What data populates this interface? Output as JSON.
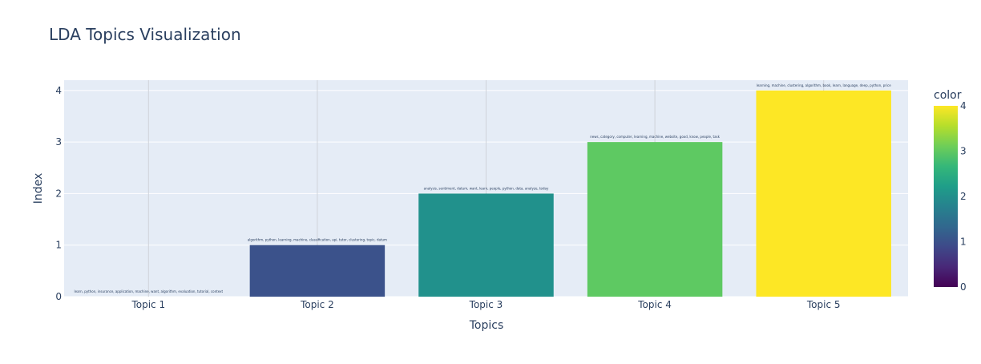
{
  "chart_data": {
    "type": "bar",
    "title": "LDA Topics Visualization",
    "xlabel": "Topics",
    "ylabel": "Index",
    "categories": [
      "Topic 1",
      "Topic 2",
      "Topic 3",
      "Topic 4",
      "Topic 5"
    ],
    "values": [
      0,
      1,
      2,
      3,
      4
    ],
    "bar_labels": [
      "learn, python, insurance, application, machine, want, algorithm, evaluation, tutorial, context",
      "algorithm, python, learning, machine, classification, api, tutor, clustering, topic, datum",
      "analysis, sentiment, datum, want, learn, people, python, data, analyze, today",
      "news, category, computer, learning, machine, website, good, know, people, task",
      "learning, machine, clustering, algorithm, book, learn, language, deep, python, price"
    ],
    "ylim": [
      0,
      4.2
    ],
    "yticks": [
      0,
      1,
      2,
      3,
      4
    ],
    "colorscale": "viridis",
    "colorbar": {
      "title": "color",
      "range": [
        0,
        4
      ],
      "ticks": [
        0,
        1,
        2,
        3,
        4
      ]
    },
    "bar_colors": [
      "#440154",
      "#3b528b",
      "#21918c",
      "#5ec962",
      "#fde725"
    ],
    "colorscale_stops": [
      "#440154",
      "#482878",
      "#3e4989",
      "#31688e",
      "#26828e",
      "#1f9e89",
      "#35b779",
      "#6ece58",
      "#b5de2b",
      "#fde725"
    ],
    "grid": true,
    "legend": "none",
    "plot_background": "#e5ecf6",
    "grid_color": "#ffffff",
    "text_color": "#2a3f5f"
  }
}
